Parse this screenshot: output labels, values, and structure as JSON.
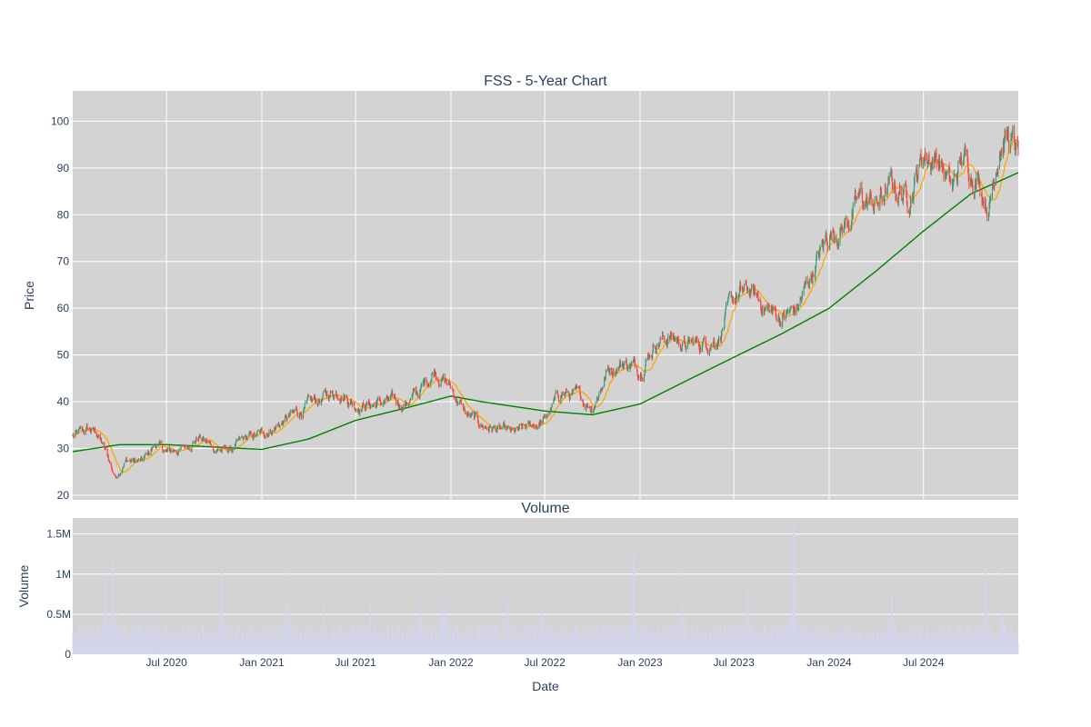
{
  "chart_data": {
    "type": "candlestick",
    "title": "FSS - 5-Year Chart",
    "xlabel": "Date",
    "x_ticks": [
      "Jul 2020",
      "Jan 2021",
      "Jul 2021",
      "Jan 2022",
      "Jul 2022",
      "Jan 2023",
      "Jul 2023",
      "Jan 2024",
      "Jul 2024"
    ],
    "x_range": [
      "2020-01-02",
      "2024-12-31"
    ],
    "grid": true,
    "legend": "none",
    "price_panel": {
      "ylabel": "Price",
      "ylim": [
        19,
        106.5
      ],
      "yticks": [
        20,
        30,
        40,
        50,
        60,
        70,
        80,
        90,
        100
      ],
      "up_color": "#3d9970",
      "down_color": "#ff4136",
      "ma_short_color": "#ffa500",
      "ma_long_color": "#008000",
      "price_anchors": [
        [
          "2020-01-02",
          32.5
        ],
        [
          "2020-02-01",
          34.0
        ],
        [
          "2020-02-20",
          33.0
        ],
        [
          "2020-03-10",
          28.0
        ],
        [
          "2020-03-23",
          24.0
        ],
        [
          "2020-04-15",
          27.5
        ],
        [
          "2020-05-15",
          27.0
        ],
        [
          "2020-06-10",
          31.0
        ],
        [
          "2020-07-01",
          29.0
        ],
        [
          "2020-08-01",
          30.0
        ],
        [
          "2020-09-01",
          32.5
        ],
        [
          "2020-10-01",
          30.0
        ],
        [
          "2020-11-01",
          29.5
        ],
        [
          "2020-12-01",
          32.0
        ],
        [
          "2021-01-01",
          33.0
        ],
        [
          "2021-02-01",
          35.0
        ],
        [
          "2021-03-01",
          37.0
        ],
        [
          "2021-04-01",
          39.0
        ],
        [
          "2021-05-01",
          41.0
        ],
        [
          "2021-06-01",
          42.5
        ],
        [
          "2021-07-01",
          39.5
        ],
        [
          "2021-08-01",
          39.5
        ],
        [
          "2021-09-01",
          40.0
        ],
        [
          "2021-10-01",
          39.5
        ],
        [
          "2021-11-01",
          42.0
        ],
        [
          "2021-12-01",
          47.0
        ],
        [
          "2022-01-01",
          43.0
        ],
        [
          "2022-02-01",
          37.0
        ],
        [
          "2022-03-01",
          35.0
        ],
        [
          "2022-04-01",
          34.0
        ],
        [
          "2022-05-01",
          33.0
        ],
        [
          "2022-06-01",
          34.5
        ],
        [
          "2022-07-01",
          36.0
        ],
        [
          "2022-08-01",
          42.0
        ],
        [
          "2022-09-01",
          41.0
        ],
        [
          "2022-10-01",
          39.0
        ],
        [
          "2022-11-01",
          47.0
        ],
        [
          "2022-12-01",
          48.5
        ],
        [
          "2023-01-01",
          47.0
        ],
        [
          "2023-02-01",
          53.0
        ],
        [
          "2023-03-01",
          54.0
        ],
        [
          "2023-04-01",
          52.0
        ],
        [
          "2023-05-01",
          52.5
        ],
        [
          "2023-06-01",
          54.0
        ],
        [
          "2023-07-01",
          62.0
        ],
        [
          "2023-08-01",
          63.5
        ],
        [
          "2023-09-01",
          60.0
        ],
        [
          "2023-10-01",
          58.0
        ],
        [
          "2023-11-01",
          60.0
        ],
        [
          "2023-12-01",
          68.0
        ],
        [
          "2024-01-01",
          76.0
        ],
        [
          "2024-02-01",
          78.0
        ],
        [
          "2024-03-01",
          83.0
        ],
        [
          "2024-04-01",
          82.0
        ],
        [
          "2024-05-01",
          86.0
        ],
        [
          "2024-06-01",
          84.0
        ],
        [
          "2024-07-01",
          93.0
        ],
        [
          "2024-08-01",
          92.0
        ],
        [
          "2024-08-25",
          85.0
        ],
        [
          "2024-09-15",
          92.0
        ],
        [
          "2024-10-15",
          88.0
        ],
        [
          "2024-11-05",
          82.0
        ],
        [
          "2024-11-25",
          96.0
        ],
        [
          "2024-12-10",
          97.0
        ],
        [
          "2024-12-31",
          92.0
        ]
      ],
      "ma_long_anchors": [
        [
          "2020-01-02",
          29.3
        ],
        [
          "2020-04-01",
          30.8
        ],
        [
          "2020-07-01",
          30.8
        ],
        [
          "2021-01-01",
          29.8
        ],
        [
          "2021-04-01",
          32.0
        ],
        [
          "2021-07-01",
          36.0
        ],
        [
          "2021-10-01",
          38.5
        ],
        [
          "2022-01-01",
          41.2
        ],
        [
          "2022-03-01",
          40.0
        ],
        [
          "2022-07-01",
          38.0
        ],
        [
          "2022-10-01",
          37.2
        ],
        [
          "2023-01-01",
          39.5
        ],
        [
          "2023-04-01",
          44.5
        ],
        [
          "2023-07-01",
          49.5
        ],
        [
          "2023-10-01",
          54.5
        ],
        [
          "2024-01-01",
          60.0
        ],
        [
          "2024-04-01",
          68.0
        ],
        [
          "2024-07-01",
          76.5
        ],
        [
          "2024-10-01",
          84.5
        ],
        [
          "2024-12-31",
          89.0
        ]
      ]
    },
    "volume_panel": {
      "title": "Volume",
      "ylabel": "Volume",
      "ylim": [
        0,
        1700000
      ],
      "yticks": [
        {
          "value": 0,
          "label": "0"
        },
        {
          "value": 500000,
          "label": "0.5M"
        },
        {
          "value": 1000000,
          "label": "1M"
        },
        {
          "value": 1500000,
          "label": "1.5M"
        }
      ],
      "bar_color": "#d4d4ee",
      "base_volume": 270000,
      "spikes": [
        [
          "2020-03-05",
          950000
        ],
        [
          "2020-03-20",
          1180000
        ],
        [
          "2020-03-28",
          800000
        ],
        [
          "2020-05-10",
          880000
        ],
        [
          "2020-06-05",
          520000
        ],
        [
          "2020-10-15",
          1030000
        ],
        [
          "2021-02-20",
          1170000
        ],
        [
          "2021-04-30",
          650000
        ],
        [
          "2021-07-30",
          680000
        ],
        [
          "2021-11-01",
          770000
        ],
        [
          "2021-12-18",
          1370000
        ],
        [
          "2022-04-20",
          700000
        ],
        [
          "2022-06-25",
          920000
        ],
        [
          "2022-12-20",
          1240000
        ],
        [
          "2023-03-25",
          1170000
        ],
        [
          "2023-07-27",
          880000
        ],
        [
          "2023-10-25",
          1600000
        ],
        [
          "2024-05-01",
          750000
        ],
        [
          "2024-10-30",
          1040000
        ],
        [
          "2024-12-01",
          1130000
        ]
      ]
    }
  }
}
